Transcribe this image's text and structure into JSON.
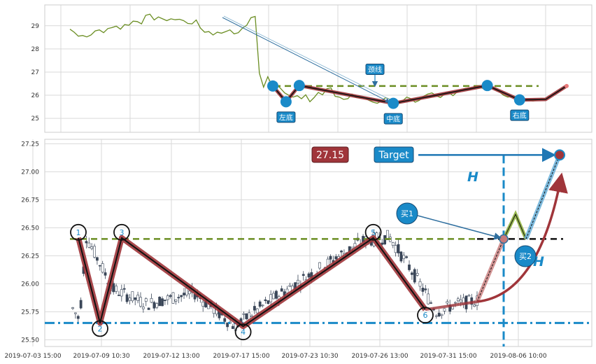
{
  "chart_data": [
    {
      "type": "line",
      "panel": "top",
      "ylim": [
        24.4,
        29.9
      ],
      "yticks": [
        "25",
        "26",
        "27",
        "28",
        "29"
      ],
      "colors": {
        "price": "#6b8e23",
        "neckline": "#6b8e23",
        "pattern": "#a0353a",
        "marker": "#1a8ac8"
      },
      "series": [
        {
          "values": [
            28.85,
            28.72,
            28.55,
            28.58,
            28.52,
            28.6,
            28.78,
            28.82,
            28.7,
            28.88,
            28.92,
            28.98,
            28.85,
            29.05,
            29.02,
            29.2,
            29.18,
            29.08,
            29.45,
            29.5,
            29.25,
            29.38,
            29.3,
            29.22,
            29.3,
            29.26,
            29.28,
            29.22,
            29.1,
            29.08,
            29.25,
            28.9,
            28.72,
            28.75,
            28.6,
            28.72,
            28.68,
            28.75,
            28.82,
            28.65,
            28.7,
            28.9,
            29.02,
            29.35,
            29.4,
            26.95,
            26.35,
            26.8,
            26.42,
            26.48,
            26.3,
            26.1,
            26.0,
            25.92,
            25.98,
            25.85,
            26.02,
            25.72,
            25.9,
            26.12,
            26.02,
            26.28,
            26.32,
            25.95,
            25.92,
            25.82,
            25.85,
            26.05,
            25.9,
            25.88,
            25.9,
            25.78,
            25.7,
            25.65,
            25.75,
            25.9,
            25.82,
            25.7,
            25.62,
            25.75,
            25.92,
            25.85,
            25.7,
            25.78,
            25.95,
            26.05,
            26.1,
            25.98,
            25.9,
            26.05,
            26.12,
            25.98,
            26.15,
            26.2,
            26.3,
            26.25,
            26.35,
            26.4,
            26.3,
            26.42,
            26.35,
            26.25,
            26.15,
            26.0,
            25.92,
            25.95,
            25.9,
            25.82,
            25.78,
            25.8,
            25.75,
            25.8,
            25.85,
            25.85
          ]
        }
      ],
      "pattern_points": [
        {
          "label": "",
          "x": 0.0,
          "y": 26.4
        },
        {
          "label": "左底",
          "x": 0.045,
          "y": 25.72
        },
        {
          "label": "",
          "x": 0.09,
          "y": 26.42
        },
        {
          "label": "中底",
          "x": 0.41,
          "y": 25.65
        },
        {
          "label": "",
          "x": 0.73,
          "y": 26.42
        },
        {
          "label": "右底",
          "x": 0.84,
          "y": 25.8
        }
      ],
      "neckline": {
        "label": "颈线",
        "value": 26.4
      }
    },
    {
      "type": "candlestick",
      "panel": "bottom",
      "ylim": [
        25.44,
        27.29
      ],
      "yticks": [
        "25.50",
        "25.75",
        "26.00",
        "26.25",
        "26.50",
        "26.75",
        "27.00",
        "27.25"
      ],
      "xticks": [
        "2019-07-03 15:00",
        "2019-07-09 10:30",
        "2019-07-12 13:00",
        "2019-07-17 15:00",
        "2019-07-23 10:30",
        "2019-07-26 13:00",
        "2019-07-31 15:00",
        "2019-08-06 10:00"
      ],
      "colors": {
        "up": "#ffffff",
        "down": "#3a4658",
        "neckline": "#6b8e23",
        "support": "#1a8ac8",
        "pattern": "#a0353a",
        "target": "#1f77b4"
      },
      "pattern_points": [
        {
          "label": "1",
          "x": 0.0,
          "y": 26.41
        },
        {
          "label": "2",
          "x": 0.05,
          "y": 25.65
        },
        {
          "label": "3",
          "x": 0.1,
          "y": 26.41
        },
        {
          "label": "4",
          "x": 0.38,
          "y": 25.62
        },
        {
          "label": "5",
          "x": 0.68,
          "y": 26.41
        },
        {
          "label": "6",
          "x": 0.8,
          "y": 25.77
        }
      ],
      "neckline_value": 26.4,
      "support_value": 25.65,
      "target_value": 27.15,
      "target_label": "27.15",
      "target_text": "Target",
      "height_label": "H",
      "buy1_label": "买1",
      "buy2_label": "买2"
    }
  ]
}
